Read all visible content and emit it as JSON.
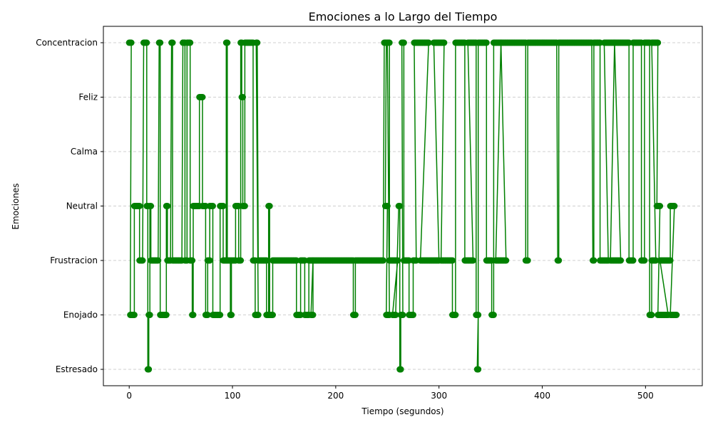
{
  "chart_data": {
    "type": "line",
    "title": "Emociones a lo Largo del Tiempo",
    "xlabel": "Tiempo (segundos)",
    "ylabel": "Emociones",
    "xlim": [
      -25,
      555
    ],
    "x_ticks": [
      0,
      100,
      200,
      300,
      400,
      500
    ],
    "categories": [
      "Estresado",
      "Enojado",
      "Frustracion",
      "Neutral",
      "Calma",
      "Feliz",
      "Concentracion"
    ],
    "grid": "y",
    "marker": "circle",
    "color": "#008000",
    "series": [
      {
        "segments": [
          {
            "range": [
              0,
              2
            ],
            "level": "Concentracion"
          },
          {
            "range": [
              1,
              3
            ],
            "level": "Enojado"
          },
          {
            "range": [
              3,
              5
            ],
            "level": "Enojado"
          },
          {
            "range": [
              5,
              10
            ],
            "level": "Neutral"
          },
          {
            "range": [
              10,
              13
            ],
            "level": "Frustracion"
          },
          {
            "range": [
              14,
              17
            ],
            "level": "Concentracion"
          },
          {
            "range": [
              17,
              18
            ],
            "level": "Neutral"
          },
          {
            "range": [
              18,
              19
            ],
            "level": "Estresado"
          },
          {
            "range": [
              19,
              20
            ],
            "level": "Enojado"
          },
          {
            "range": [
              20,
              21
            ],
            "level": "Neutral"
          },
          {
            "range": [
              21,
              28
            ],
            "level": "Frustracion"
          },
          {
            "range": [
              29,
              30
            ],
            "level": "Concentracion"
          },
          {
            "range": [
              30,
              36
            ],
            "level": "Enojado"
          },
          {
            "range": [
              36,
              37
            ],
            "level": "Neutral"
          },
          {
            "range": [
              37,
              40
            ],
            "level": "Frustracion"
          },
          {
            "range": [
              41,
              42
            ],
            "level": "Concentracion"
          },
          {
            "range": [
              42,
              51
            ],
            "level": "Frustracion"
          },
          {
            "range": [
              52,
              54
            ],
            "level": "Concentracion"
          },
          {
            "range": [
              54,
              56
            ],
            "level": "Frustracion"
          },
          {
            "range": [
              56,
              59
            ],
            "level": "Concentracion"
          },
          {
            "range": [
              59,
              61
            ],
            "level": "Frustracion"
          },
          {
            "range": [
              61,
              62
            ],
            "level": "Enojado"
          },
          {
            "range": [
              62,
              68
            ],
            "level": "Neutral"
          },
          {
            "range": [
              68,
              71
            ],
            "level": "Feliz"
          },
          {
            "range": [
              71,
              74
            ],
            "level": "Neutral"
          },
          {
            "range": [
              74,
              76
            ],
            "level": "Enojado"
          },
          {
            "range": [
              76,
              78
            ],
            "level": "Frustracion"
          },
          {
            "range": [
              78,
              81
            ],
            "level": "Neutral"
          },
          {
            "range": [
              81,
              88
            ],
            "level": "Enojado"
          },
          {
            "range": [
              88,
              91
            ],
            "level": "Neutral"
          },
          {
            "range": [
              91,
              94
            ],
            "level": "Frustracion"
          },
          {
            "range": [
              94,
              95
            ],
            "level": "Concentracion"
          },
          {
            "range": [
              95,
              98
            ],
            "level": "Frustracion"
          },
          {
            "range": [
              98,
              99
            ],
            "level": "Enojado"
          },
          {
            "range": [
              99,
              103
            ],
            "level": "Frustracion"
          },
          {
            "range": [
              103,
              106
            ],
            "level": "Neutral"
          },
          {
            "range": [
              106,
              108
            ],
            "level": "Frustracion"
          },
          {
            "range": [
              108,
              109
            ],
            "level": "Concentracion"
          },
          {
            "range": [
              109,
              110
            ],
            "level": "Feliz"
          },
          {
            "range": [
              110,
              112
            ],
            "level": "Neutral"
          },
          {
            "range": [
              112,
              120
            ],
            "level": "Concentracion"
          },
          {
            "range": [
              120,
              122
            ],
            "level": "Frustracion"
          },
          {
            "range": [
              122,
              125
            ],
            "level": "Enojado"
          },
          {
            "range": [
              123,
              124
            ],
            "level": "Concentracion"
          },
          {
            "range": [
              125,
              133
            ],
            "level": "Frustracion"
          },
          {
            "range": [
              133,
              135
            ],
            "level": "Enojado"
          },
          {
            "range": [
              135,
              136
            ],
            "level": "Neutral"
          },
          {
            "range": [
              136,
              139
            ],
            "level": "Enojado"
          },
          {
            "range": [
              139,
              162
            ],
            "level": "Frustracion"
          },
          {
            "range": [
              162,
              166
            ],
            "level": "Enojado"
          },
          {
            "range": [
              166,
              170
            ],
            "level": "Frustracion"
          },
          {
            "range": [
              170,
              174
            ],
            "level": "Enojado"
          },
          {
            "range": [
              174,
              178
            ],
            "level": "Frustracion"
          },
          {
            "range": [
              176,
              178
            ],
            "level": "Enojado"
          },
          {
            "range": [
              178,
              217
            ],
            "level": "Frustracion"
          },
          {
            "range": [
              217,
              219
            ],
            "level": "Enojado"
          },
          {
            "range": [
              219,
              246
            ],
            "level": "Frustracion"
          },
          {
            "range": [
              247,
              249
            ],
            "level": "Concentracion"
          },
          {
            "range": [
              248,
              250
            ],
            "level": "Neutral"
          },
          {
            "range": [
              249,
              252
            ],
            "level": "Enojado"
          },
          {
            "range": [
              250,
              252
            ],
            "level": "Concentracion"
          },
          {
            "range": [
              252,
              260
            ],
            "level": "Frustracion"
          },
          {
            "range": [
              255,
              258
            ],
            "level": "Enojado"
          },
          {
            "range": [
              261,
              262
            ],
            "level": "Neutral"
          },
          {
            "range": [
              262,
              263
            ],
            "level": "Estresado"
          },
          {
            "range": [
              263,
              265
            ],
            "level": "Enojado"
          },
          {
            "range": [
              264,
              266
            ],
            "level": "Concentracion"
          },
          {
            "range": [
              266,
              271
            ],
            "level": "Frustracion"
          },
          {
            "range": [
              271,
              275
            ],
            "level": "Enojado"
          },
          {
            "range": [
              275,
              278
            ],
            "level": "Frustracion"
          },
          {
            "range": [
              276,
              290
            ],
            "level": "Concentracion"
          },
          {
            "range": [
              282,
              300
            ],
            "level": "Frustracion"
          },
          {
            "range": [
              295,
              305
            ],
            "level": "Concentracion"
          },
          {
            "range": [
              302,
              313
            ],
            "level": "Frustracion"
          },
          {
            "range": [
              313,
              316
            ],
            "level": "Enojado"
          },
          {
            "range": [
              316,
              325
            ],
            "level": "Concentracion"
          },
          {
            "range": [
              325,
              333
            ],
            "level": "Frustracion"
          },
          {
            "range": [
              328,
              336
            ],
            "level": "Concentracion"
          },
          {
            "range": [
              336,
              338
            ],
            "level": "Enojado"
          },
          {
            "range": [
              337,
              338
            ],
            "level": "Estresado"
          },
          {
            "range": [
              338,
              346
            ],
            "level": "Concentracion"
          },
          {
            "range": [
              346,
              351
            ],
            "level": "Frustracion"
          },
          {
            "range": [
              351,
              353
            ],
            "level": "Enojado"
          },
          {
            "range": [
              353,
              360
            ],
            "level": "Concentracion"
          },
          {
            "range": [
              355,
              365
            ],
            "level": "Frustracion"
          },
          {
            "range": [
              360,
              384
            ],
            "level": "Concentracion"
          },
          {
            "range": [
              384,
              386
            ],
            "level": "Frustracion"
          },
          {
            "range": [
              386,
              414
            ],
            "level": "Concentracion"
          },
          {
            "range": [
              415,
              416
            ],
            "level": "Frustracion"
          },
          {
            "range": [
              416,
              448
            ],
            "level": "Concentracion"
          },
          {
            "range": [
              449,
              450
            ],
            "level": "Frustracion"
          },
          {
            "range": [
              450,
              456
            ],
            "level": "Concentracion"
          },
          {
            "range": [
              456,
              464
            ],
            "level": "Frustracion"
          },
          {
            "range": [
              460,
              470
            ],
            "level": "Concentracion"
          },
          {
            "range": [
              466,
              476
            ],
            "level": "Frustracion"
          },
          {
            "range": [
              470,
              484
            ],
            "level": "Concentracion"
          },
          {
            "range": [
              484,
              488
            ],
            "level": "Frustracion"
          },
          {
            "range": [
              488,
              496
            ],
            "level": "Concentracion"
          },
          {
            "range": [
              496,
              499
            ],
            "level": "Frustracion"
          },
          {
            "range": [
              499,
              504
            ],
            "level": "Concentracion"
          },
          {
            "range": [
              504,
              506
            ],
            "level": "Enojado"
          },
          {
            "range": [
              506,
              510
            ],
            "level": "Frustracion"
          },
          {
            "range": [
              506,
              512
            ],
            "level": "Concentracion"
          },
          {
            "range": [
              511,
              514
            ],
            "level": "Neutral"
          },
          {
            "range": [
              512,
              522
            ],
            "level": "Enojado"
          },
          {
            "range": [
              514,
              524
            ],
            "level": "Frustracion"
          },
          {
            "range": [
              524,
              528
            ],
            "level": "Neutral"
          },
          {
            "range": [
              524,
              530
            ],
            "level": "Enojado"
          }
        ]
      }
    ]
  }
}
